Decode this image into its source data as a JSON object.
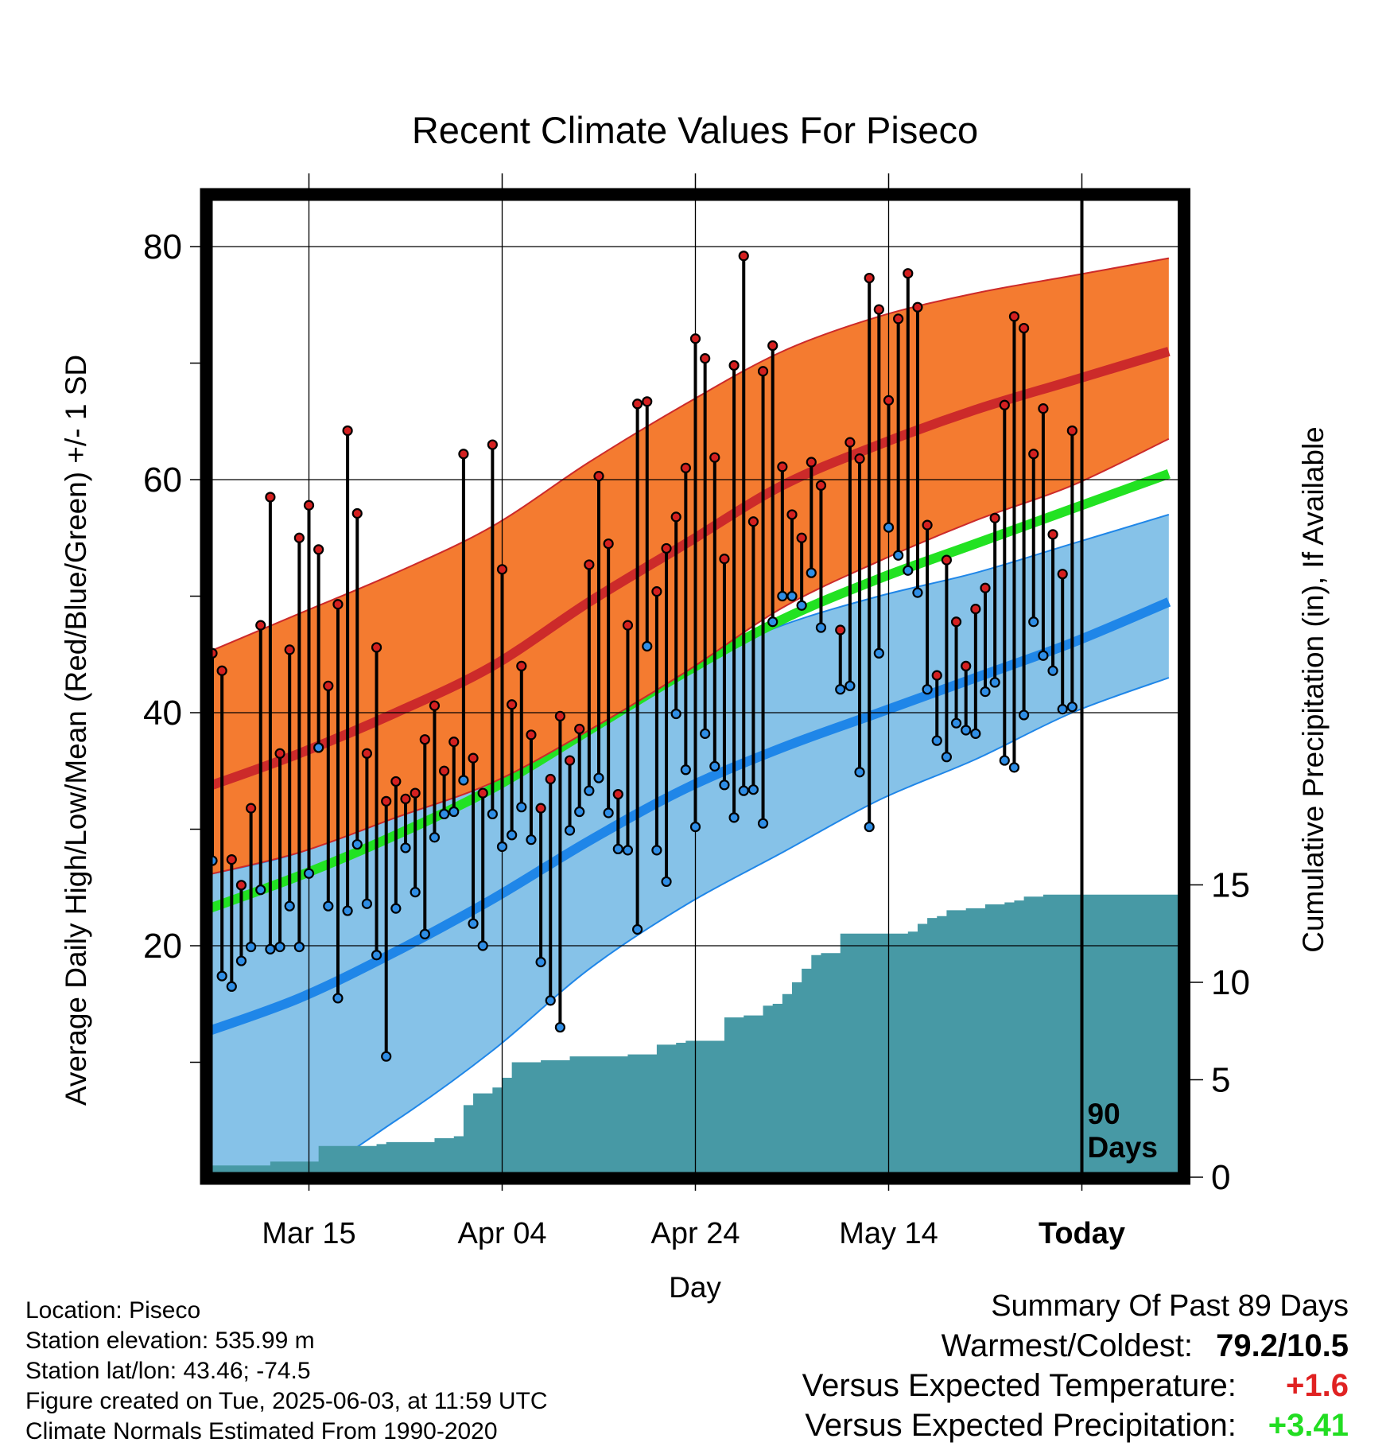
{
  "chart_data": {
    "type": "line",
    "title": "Recent Climate Values For Piseco",
    "xlabel": "Day",
    "ylabel": "Average Daily High/Low/Mean (Red/Blue/Green) +/- 1 SD",
    "y2label": "Cumulative Precipitation (in), If Available",
    "x_ticks": [
      "Mar 15",
      "Apr 04",
      "Apr 24",
      "May 14",
      "Today"
    ],
    "y_ticks": [
      20,
      40,
      60,
      80
    ],
    "y2_ticks": [
      0,
      5,
      10,
      15
    ],
    "ylim": [
      -0.5,
      84.5
    ],
    "y2lim": [
      0,
      26
    ],
    "grid": true,
    "today_marker_label": "90\nDays",
    "colors": {
      "high_band": "#f47b30",
      "high_mean": "#cc2a2a",
      "low_band": "#86c2e8",
      "low_mean": "#1f86e8",
      "mean_line": "#22e222",
      "precip": "#4799a5",
      "high_marker": "#d42020",
      "low_marker": "#2f8ee6"
    },
    "normals": {
      "x": [
        "Mar 04",
        "Mar 14",
        "Mar 24",
        "Apr 03",
        "Apr 13",
        "Apr 23",
        "May 03",
        "May 13",
        "May 23",
        "Jun 02",
        "Jun 12"
      ],
      "high_mean": [
        33.5,
        36.5,
        40,
        44,
        49.5,
        54.5,
        59.5,
        63,
        66,
        68.5,
        71
      ],
      "high_upper": [
        45,
        48.5,
        52,
        56,
        61.5,
        66.5,
        71,
        74,
        76,
        77.5,
        79
      ],
      "high_lower": [
        26,
        28,
        31,
        34,
        38.5,
        43.5,
        49,
        53,
        56.5,
        59.5,
        63.5
      ],
      "mean_line": [
        23,
        26,
        29.5,
        33.5,
        38.5,
        43.5,
        48,
        51.5,
        54.5,
        57.5,
        60.5
      ],
      "low_mean": [
        12.5,
        15.5,
        19.5,
        24,
        29,
        33.5,
        37,
        40,
        43,
        46,
        49.5
      ],
      "low_upper": [
        26,
        28,
        31.5,
        35.5,
        40,
        44,
        47.5,
        50,
        52,
        54.5,
        57
      ],
      "low_lower": [
        -1,
        0,
        5,
        11,
        18,
        23.5,
        28,
        32.5,
        36,
        40,
        43
      ]
    },
    "series": [
      {
        "name": "High",
        "values": [
          45.1,
          43.6,
          27.4,
          25.2,
          31.8,
          47.5,
          58.5,
          36.5,
          45.4,
          55.0,
          57.8,
          54.0,
          42.3,
          49.3,
          64.2,
          57.1,
          36.5,
          45.6,
          32.4,
          34.1,
          32.6,
          33.1,
          37.7,
          40.6,
          35.0,
          37.5,
          62.2,
          36.1,
          33.1,
          63.0,
          52.3,
          40.7,
          44.0,
          38.1,
          31.8,
          34.3,
          39.7,
          35.9,
          38.6,
          52.7,
          60.3,
          54.5,
          33.0,
          47.5,
          66.5,
          66.7,
          50.4,
          54.1,
          56.8,
          61.0,
          72.1,
          70.4,
          61.9,
          53.2,
          69.8,
          79.2,
          56.4,
          69.3,
          71.5,
          61.1,
          57.0,
          55.0,
          61.5,
          59.5,
          null,
          47.1,
          63.2,
          61.8,
          77.3,
          74.6,
          66.8,
          73.8,
          77.7,
          74.8,
          56.1,
          43.2,
          53.1,
          47.8,
          44.0,
          48.9,
          50.7,
          56.7,
          66.4,
          74.0,
          73.0,
          62.2,
          66.1,
          55.3,
          51.9,
          64.2
        ]
      },
      {
        "name": "Low",
        "values": [
          27.3,
          17.4,
          16.5,
          18.7,
          19.9,
          24.8,
          19.7,
          19.9,
          23.4,
          19.9,
          26.2,
          37.0,
          23.4,
          15.5,
          23.0,
          28.7,
          23.6,
          19.2,
          10.5,
          23.2,
          28.4,
          24.6,
          21.0,
          29.3,
          31.3,
          31.5,
          34.2,
          21.9,
          20.0,
          31.3,
          28.5,
          29.5,
          31.9,
          29.1,
          18.6,
          15.3,
          13.0,
          29.9,
          31.5,
          33.3,
          34.4,
          31.4,
          28.3,
          28.2,
          21.4,
          45.7,
          28.2,
          25.5,
          39.9,
          35.1,
          30.2,
          38.2,
          35.4,
          33.8,
          31.0,
          33.3,
          33.4,
          30.5,
          47.8,
          50.0,
          50.0,
          49.2,
          52.0,
          47.3,
          null,
          42.0,
          42.3,
          34.9,
          30.2,
          45.1,
          55.9,
          53.5,
          52.2,
          50.3,
          42.0,
          37.6,
          36.2,
          39.1,
          38.5,
          38.2,
          41.8,
          42.6,
          35.9,
          35.3,
          39.8,
          47.8,
          44.9,
          43.6,
          40.3,
          40.5
        ]
      }
    ],
    "precip": {
      "day": [
        0,
        6,
        10,
        11,
        17,
        18,
        20,
        23,
        24,
        25,
        26,
        27,
        28,
        29,
        30,
        31,
        34,
        37,
        39,
        43,
        45,
        46,
        48,
        49,
        50,
        52,
        53,
        55,
        57,
        58,
        59,
        60,
        61,
        62,
        63,
        65,
        66,
        67,
        68,
        69,
        70,
        71,
        72,
        73,
        74,
        75,
        76,
        77,
        78,
        79,
        80,
        81,
        82,
        83,
        84,
        85,
        86,
        87,
        88,
        89,
        92
      ],
      "total": [
        0.6,
        0.8,
        0.8,
        1.6,
        1.7,
        1.8,
        1.8,
        2.0,
        2.0,
        2.1,
        3.7,
        4.3,
        4.3,
        4.6,
        5.1,
        5.9,
        6.0,
        6.2,
        6.2,
        6.3,
        6.3,
        6.8,
        6.9,
        7.0,
        7.0,
        7.0,
        8.2,
        8.3,
        8.8,
        8.9,
        9.4,
        10.0,
        10.7,
        11.4,
        11.5,
        12.5,
        12.5,
        12.5,
        12.5,
        12.5,
        12.5,
        12.5,
        12.6,
        13.0,
        13.3,
        13.4,
        13.7,
        13.7,
        13.8,
        13.8,
        14.0,
        14.0,
        14.1,
        14.2,
        14.4,
        14.4,
        14.5,
        14.5,
        14.5,
        14.5,
        14.5
      ]
    }
  },
  "info": {
    "location": "Location: Piseco",
    "elevation": "Station elevation: 535.99 m",
    "latlon": "Station lat/lon: 43.46; -74.5",
    "created": "Figure created on Tue, 2025-06-03, at 11:59 UTC",
    "normals": "Climate Normals Estimated From 1990-2020"
  },
  "summary": {
    "title": "Summary Of Past 89 Days",
    "warm_cold_label": "Warmest/Coldest:",
    "warm_cold_value": "79.2/10.5",
    "temp_label": "Versus Expected Temperature:",
    "temp_value": "+1.6",
    "temp_color": "#e02222",
    "precip_label": "Versus Expected Precipitation:",
    "precip_value": "+3.41",
    "precip_color": "#22dd22"
  }
}
